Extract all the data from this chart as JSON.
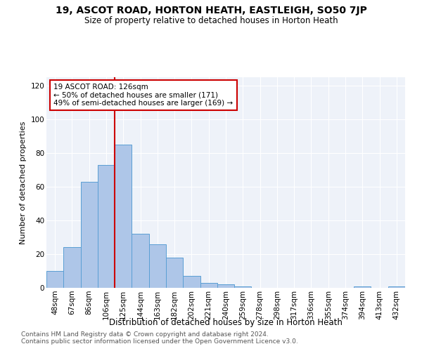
{
  "title1": "19, ASCOT ROAD, HORTON HEATH, EASTLEIGH, SO50 7JP",
  "title2": "Size of property relative to detached houses in Horton Heath",
  "xlabel": "Distribution of detached houses by size in Horton Heath",
  "ylabel": "Number of detached properties",
  "bar_labels": [
    "48sqm",
    "67sqm",
    "86sqm",
    "106sqm",
    "125sqm",
    "144sqm",
    "163sqm",
    "182sqm",
    "202sqm",
    "221sqm",
    "240sqm",
    "259sqm",
    "278sqm",
    "298sqm",
    "317sqm",
    "336sqm",
    "355sqm",
    "374sqm",
    "394sqm",
    "413sqm",
    "432sqm"
  ],
  "bar_values": [
    10,
    24,
    63,
    73,
    85,
    32,
    26,
    18,
    7,
    3,
    2,
    1,
    0,
    0,
    0,
    0,
    0,
    0,
    1,
    0,
    1
  ],
  "bar_color": "#aec6e8",
  "bar_edgecolor": "#5a9fd4",
  "vline_x": 3.5,
  "vline_color": "#cc0000",
  "annotation_text": "19 ASCOT ROAD: 126sqm\n← 50% of detached houses are smaller (171)\n49% of semi-detached houses are larger (169) →",
  "ylim": [
    0,
    125
  ],
  "yticks": [
    0,
    20,
    40,
    60,
    80,
    100,
    120
  ],
  "background_color": "#eef2f9",
  "footer1": "Contains HM Land Registry data © Crown copyright and database right 2024.",
  "footer2": "Contains public sector information licensed under the Open Government Licence v3.0.",
  "title1_fontsize": 10,
  "title2_fontsize": 8.5,
  "xlabel_fontsize": 8.5,
  "ylabel_fontsize": 8,
  "tick_fontsize": 7.5,
  "annotation_fontsize": 7.5,
  "footer_fontsize": 6.5
}
